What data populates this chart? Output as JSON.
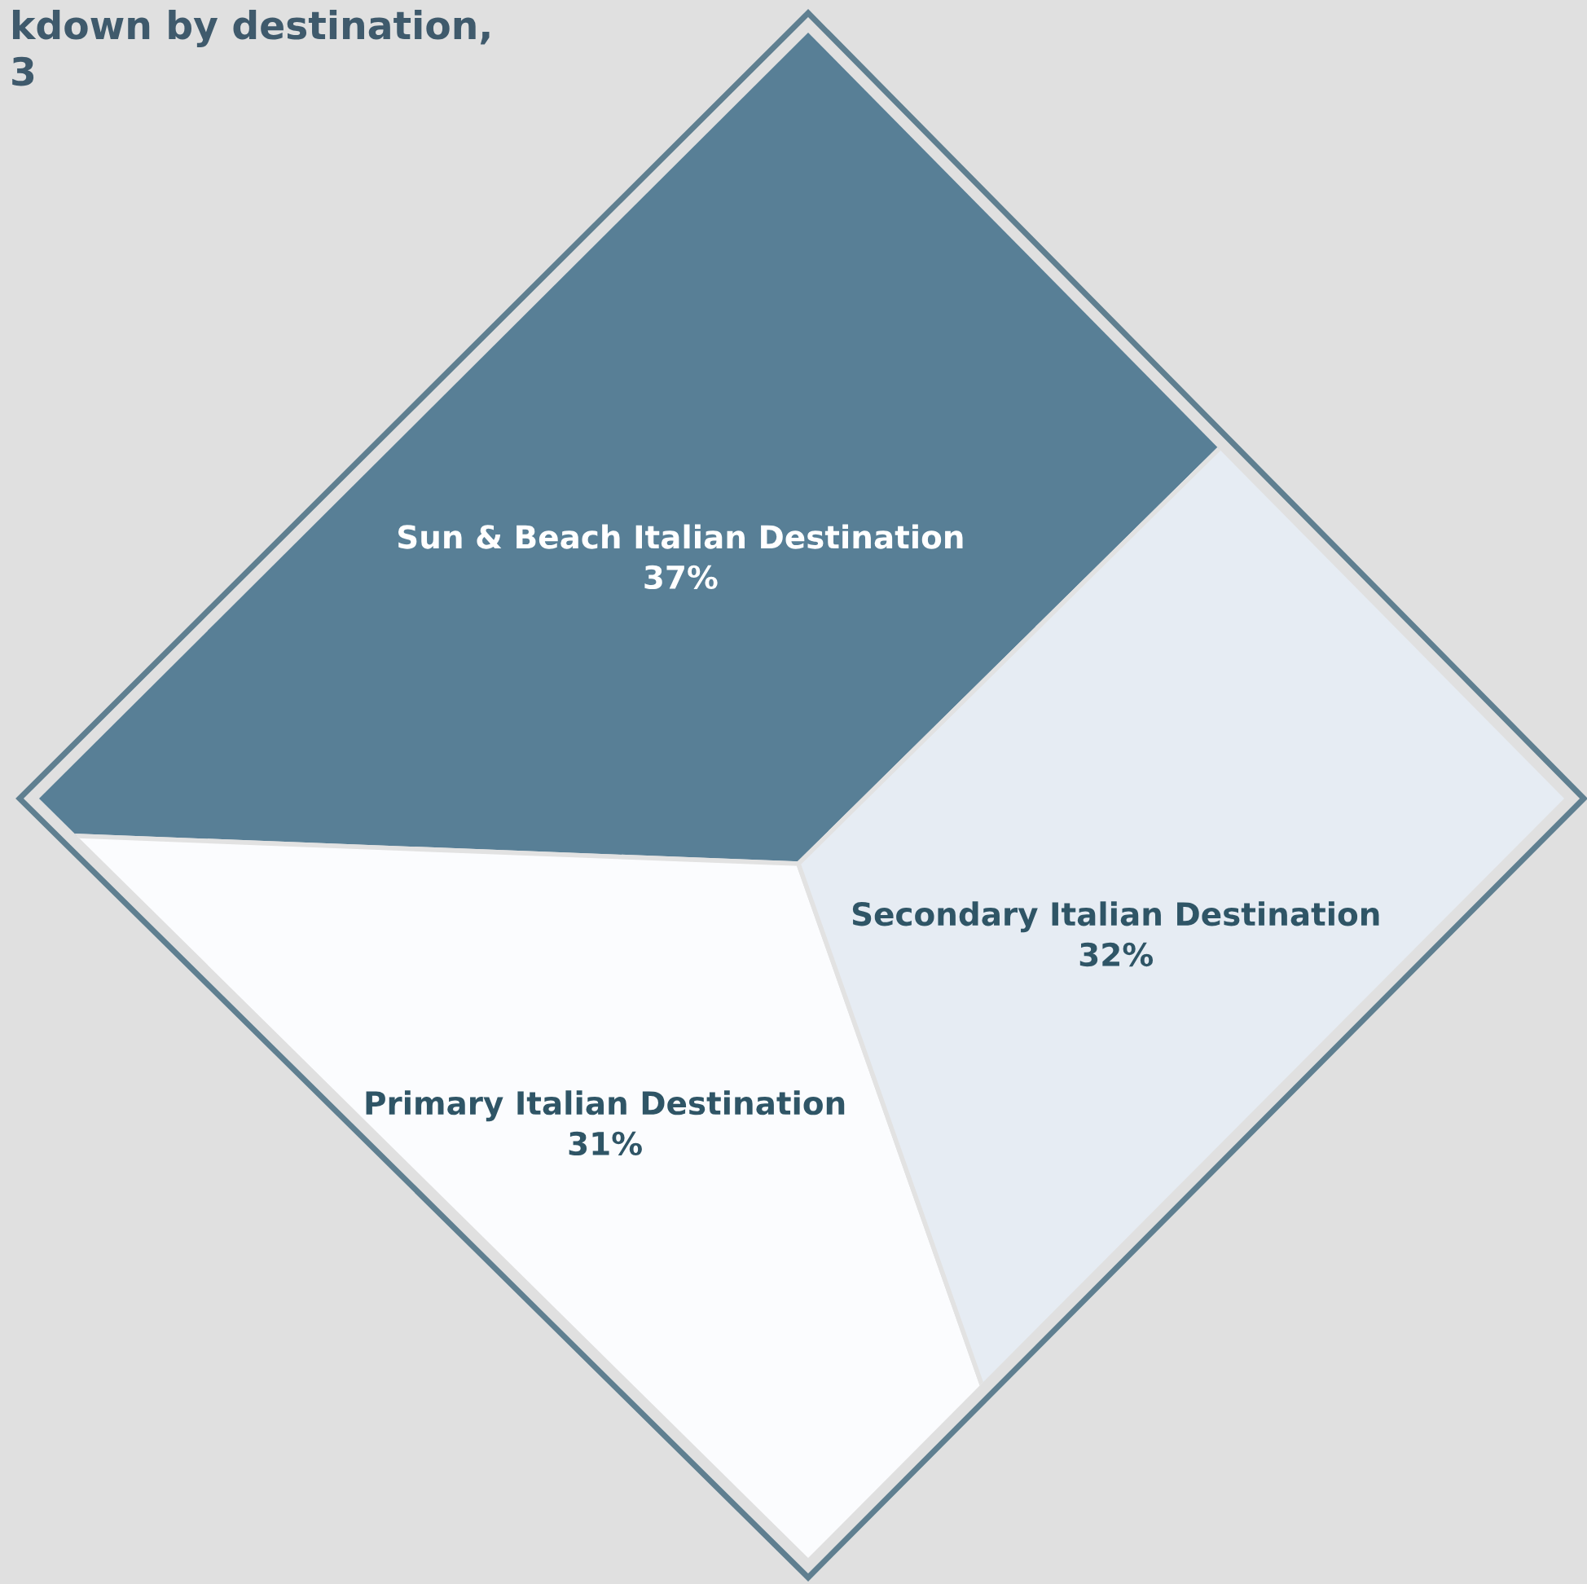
{
  "chart_data": {
    "type": "pie",
    "title": "kdown by destination,\n3",
    "categories": [
      "Sun & Beach Italian Destination",
      "Primary Italian Destination",
      "Secondary Italian Destination"
    ],
    "values": [
      37,
      31,
      32
    ],
    "value_labels": [
      "37%",
      "31%",
      "32%"
    ],
    "colors": [
      "#587f96",
      "#fbfcfe",
      "#e6ecf3"
    ]
  }
}
